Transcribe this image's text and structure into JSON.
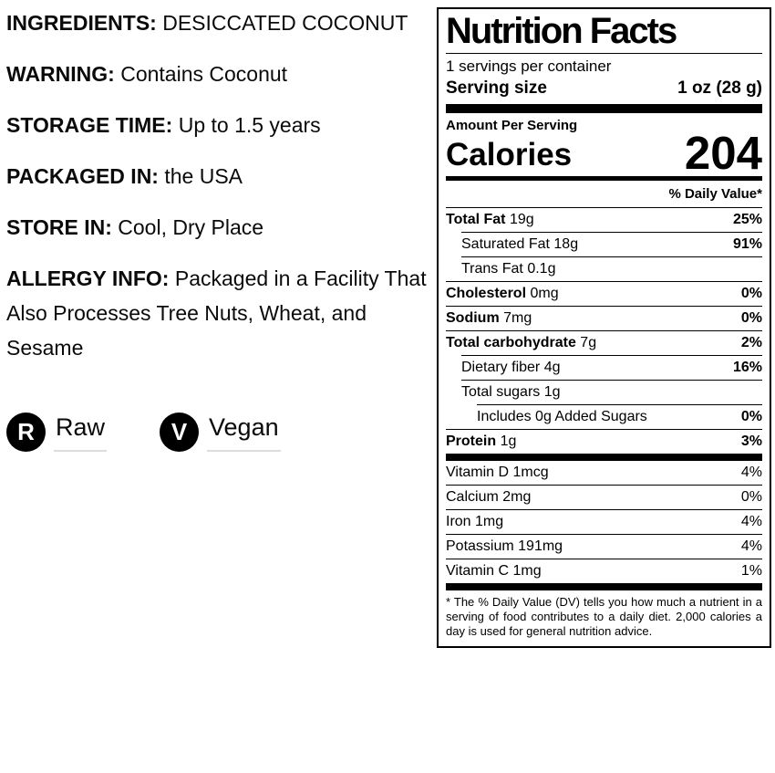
{
  "colors": {
    "text": "#000000",
    "badge_bg": "#000000",
    "badge_letter": "#ffffff",
    "badge_underline": "#dddddd"
  },
  "product_info": {
    "sections": [
      {
        "label": "INGREDIENTS:",
        "text": "DESICCATED COCONUT"
      },
      {
        "label": "WARNING:",
        "text": "Contains Coconut"
      },
      {
        "label": "STORAGE TIME:",
        "text": "Up to 1.5 years"
      },
      {
        "label": "PACKAGED IN:",
        "text": "the USA"
      },
      {
        "label": "STORE IN:",
        "text": "Cool, Dry Place"
      },
      {
        "label": "ALLERGY INFO:",
        "text": "Packaged in a Facility That Also Processes Tree Nuts, Wheat, and Sesame"
      }
    ],
    "badges": [
      {
        "icon_letter": "R",
        "label": "Raw"
      },
      {
        "icon_letter": "V",
        "label": "Vegan"
      }
    ]
  },
  "nutrition_facts": {
    "title": "Nutrition Facts",
    "servings_per_container": "1 servings per container",
    "serving_size_label": "Serving size",
    "serving_size_value": "1 oz (28 g)",
    "amount_per_serving": "Amount Per Serving",
    "calories_label": "Calories",
    "calories_value": "204",
    "daily_value_header": "% Daily Value*",
    "rows": [
      {
        "name": "Total Fat",
        "amount": "19g",
        "dv": "25%"
      },
      {
        "name": "Saturated Fat",
        "amount": "18g",
        "dv": "91%"
      },
      {
        "name": "Trans Fat",
        "amount": "0.1g",
        "dv": ""
      },
      {
        "name": "Cholesterol",
        "amount": "0mg",
        "dv": "0%"
      },
      {
        "name": "Sodium",
        "amount": "7mg",
        "dv": "0%"
      },
      {
        "name": "Total carbohydrate",
        "amount": "7g",
        "dv": "2%"
      },
      {
        "name": "Dietary fiber",
        "amount": "4g",
        "dv": "16%"
      },
      {
        "name": "Total sugars",
        "amount": "1g",
        "dv": ""
      },
      {
        "name": "Includes 0g Added Sugars",
        "amount": "",
        "dv": "0%"
      },
      {
        "name": "Protein",
        "amount": "1g",
        "dv": "3%"
      }
    ],
    "vitamins": [
      {
        "name": "Vitamin D",
        "amount": "1mcg",
        "dv": "4%"
      },
      {
        "name": "Calcium",
        "amount": "2mg",
        "dv": "0%"
      },
      {
        "name": "Iron",
        "amount": "1mg",
        "dv": "4%"
      },
      {
        "name": "Potassium",
        "amount": "191mg",
        "dv": "4%"
      },
      {
        "name": "Vitamin C",
        "amount": "1mg",
        "dv": "1%"
      }
    ],
    "footnote": "* The % Daily Value (DV) tells you how much a nutrient in a serving of food contributes to a daily diet. 2,000 calories a day is used for general nutrition advice."
  }
}
